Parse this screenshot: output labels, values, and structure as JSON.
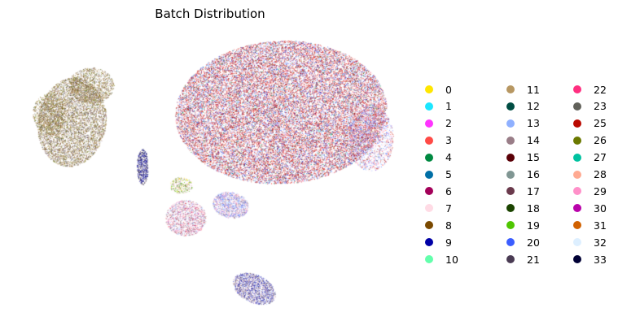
{
  "chart_data": {
    "type": "scatter",
    "title": "Batch Distribution",
    "xlabel": "",
    "ylabel": "",
    "grid": false,
    "axes_visible": false,
    "legend_placement": "right",
    "legend_columns": 3,
    "series": [
      {
        "name": "0",
        "color": "#ffe600"
      },
      {
        "name": "1",
        "color": "#1ce6ff"
      },
      {
        "name": "2",
        "color": "#ff34ff"
      },
      {
        "name": "3",
        "color": "#ff4a46"
      },
      {
        "name": "4",
        "color": "#008941"
      },
      {
        "name": "5",
        "color": "#006fa6"
      },
      {
        "name": "6",
        "color": "#a30059"
      },
      {
        "name": "7",
        "color": "#ffdbe5"
      },
      {
        "name": "8",
        "color": "#7a4900"
      },
      {
        "name": "9",
        "color": "#0000a6"
      },
      {
        "name": "10",
        "color": "#63ffac"
      },
      {
        "name": "11",
        "color": "#b79762"
      },
      {
        "name": "12",
        "color": "#004d43"
      },
      {
        "name": "13",
        "color": "#8fb0ff"
      },
      {
        "name": "14",
        "color": "#997d87"
      },
      {
        "name": "15",
        "color": "#5a0007"
      },
      {
        "name": "16",
        "color": "#809693"
      },
      {
        "name": "17",
        "color": "#6a3a4c"
      },
      {
        "name": "18",
        "color": "#1b4400"
      },
      {
        "name": "19",
        "color": "#4fc601"
      },
      {
        "name": "20",
        "color": "#3b5dff"
      },
      {
        "name": "21",
        "color": "#4a3b53"
      },
      {
        "name": "22",
        "color": "#ff2f80"
      },
      {
        "name": "23",
        "color": "#61615a"
      },
      {
        "name": "25",
        "color": "#ba0900"
      },
      {
        "name": "26",
        "color": "#6b7900"
      },
      {
        "name": "27",
        "color": "#00c2a0"
      },
      {
        "name": "28",
        "color": "#ffaa92"
      },
      {
        "name": "29",
        "color": "#ff90c9"
      },
      {
        "name": "30",
        "color": "#b903aa"
      },
      {
        "name": "31",
        "color": "#d16100"
      },
      {
        "name": "32",
        "color": "#ddefff"
      },
      {
        "name": "33",
        "color": "#000035"
      }
    ]
  }
}
